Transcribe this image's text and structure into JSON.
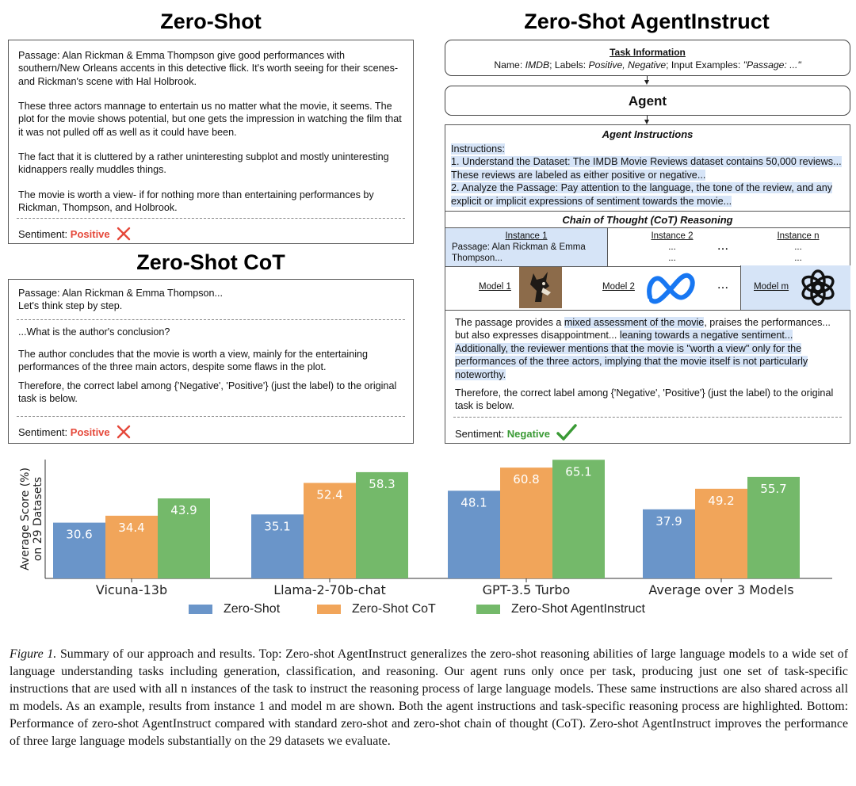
{
  "titles": {
    "zero_shot": "Zero-Shot",
    "agentinstruct": "Zero-Shot AgentInstruct",
    "cot": "Zero-Shot CoT"
  },
  "zero_shot_panel": {
    "paragraphs": [
      "Passage: Alan Rickman & Emma Thompson give good performances with southern/New Orleans accents in this detective flick. It's worth seeing for their scenes- and Rickman's scene with Hal Holbrook.",
      "These three actors mannage to entertain us no matter what the movie, it seems. The plot for the movie shows potential, but one gets the impression in watching the film that it was not pulled off as well as it could have been.",
      "The fact that it is cluttered by a rather uninteresting subplot and mostly uninteresting kidnappers really muddles things.",
      "The movie is worth a view- if for nothing more than entertaining performances by Rickman, Thompson, and Holbrook."
    ],
    "sentiment_label": "Sentiment:",
    "sentiment_value": "Positive"
  },
  "cot_panel": {
    "line1": "Passage: Alan Rickman & Emma Thompson...",
    "line2": "Let's think step by step.",
    "q": "...What is the author's conclusion?",
    "p1": "The author concludes that the movie is worth a view, mainly for the entertaining performances of the three main actors, despite some flaws in the plot.",
    "p2": "Therefore, the correct label among {'Negative', 'Positive'} (just the label) to the original task is below.",
    "sentiment_label": "Sentiment:",
    "sentiment_value": "Positive"
  },
  "agent_panel": {
    "task_info_title": "Task Information",
    "task_info": {
      "name_label": "Name: ",
      "name_value": "IMDB",
      "labels_label": "; Labels: ",
      "labels_value": "Positive, Negative",
      "inputs_label": "; Input Examples: ",
      "inputs_value": "\"Passage: ...\""
    },
    "agent_label": "Agent",
    "agent_instructions_title": "Agent Instructions",
    "instructions": {
      "header": "Instructions:",
      "step1": "1. Understand the Dataset: The IMDB Movie Reviews dataset contains 50,000 reviews... These reviews are labeled as either positive or negative...",
      "step2": "2. Analyze the Passage: Pay attention to the language, the tone of the review, and any explicit or implicit expressions of sentiment towards the movie..."
    },
    "cot_title": "Chain of Thought (CoT) Reasoning",
    "instances": {
      "i1_label": "Instance 1",
      "i1_text": "Passage: Alan Rickman & Emma Thompson...",
      "i2_label": "Instance 2",
      "i2_dots1": "...",
      "i2_dots2": "...",
      "mid_ellipsis": "...",
      "in_label": "Instance n",
      "in_dots1": "...",
      "in_dots2": "..."
    },
    "models": {
      "m1": "Model 1",
      "m2": "Model 2",
      "ellipsis": "...",
      "mm": "Model m"
    },
    "reasoning": {
      "t1": "The passage provides a ",
      "t2": "mixed assessment of the movie",
      "t3": ", praises the performances... but also expresses disappointment... ",
      "t4": "leaning towards a negative sentiment...",
      "t5": " Additionally, the reviewer mentions that the movie is \"worth a view\" only for the performances of the three actors, implying that the movie itself is not particularly noteworthy.",
      "p2": "Therefore, the correct label among {'Negative', 'Positive'} (just the label) to the original task is below."
    },
    "sentiment_label": "Sentiment:",
    "sentiment_value": "Negative"
  },
  "chart_data": {
    "type": "bar",
    "ylabel": "Average Score (%)\non 29 Datasets",
    "categories": [
      "Vicuna-13b",
      "Llama-2-70b-chat",
      "GPT-3.5 Turbo",
      "Average over 3 Models"
    ],
    "series": [
      {
        "name": "Zero-Shot",
        "values": [
          30.6,
          35.1,
          48.1,
          37.9
        ],
        "color": "#6a95c9"
      },
      {
        "name": "Zero-Shot CoT",
        "values": [
          34.4,
          52.4,
          60.8,
          49.2
        ],
        "color": "#f1a55a"
      },
      {
        "name": "Zero-Shot AgentInstruct",
        "values": [
          43.9,
          58.3,
          65.1,
          55.7
        ],
        "color": "#74b96a"
      }
    ],
    "legend": "bottom",
    "grid": false
  },
  "caption": {
    "fig_label": "Figure 1.",
    "text": " Summary of our approach and results. Top: Zero-shot AgentInstruct generalizes the zero-shot reasoning abilities of large language models to a wide set of language understanding tasks including generation, classification, and reasoning. Our agent runs only once per task, producing just one set of task-specific instructions that are used with all n instances of the task to instruct the reasoning process of large language models. These same instructions are also shared across all m models. As an example, results from instance 1 and model m are shown. Both the agent instructions and task-specific reasoning process are highlighted. Bottom: Performance of zero-shot AgentInstruct compared with standard zero-shot and zero-shot chain of thought (CoT). Zero-shot AgentInstruct improves the performance of three large language models substantially on the 29 datasets we evaluate."
  }
}
